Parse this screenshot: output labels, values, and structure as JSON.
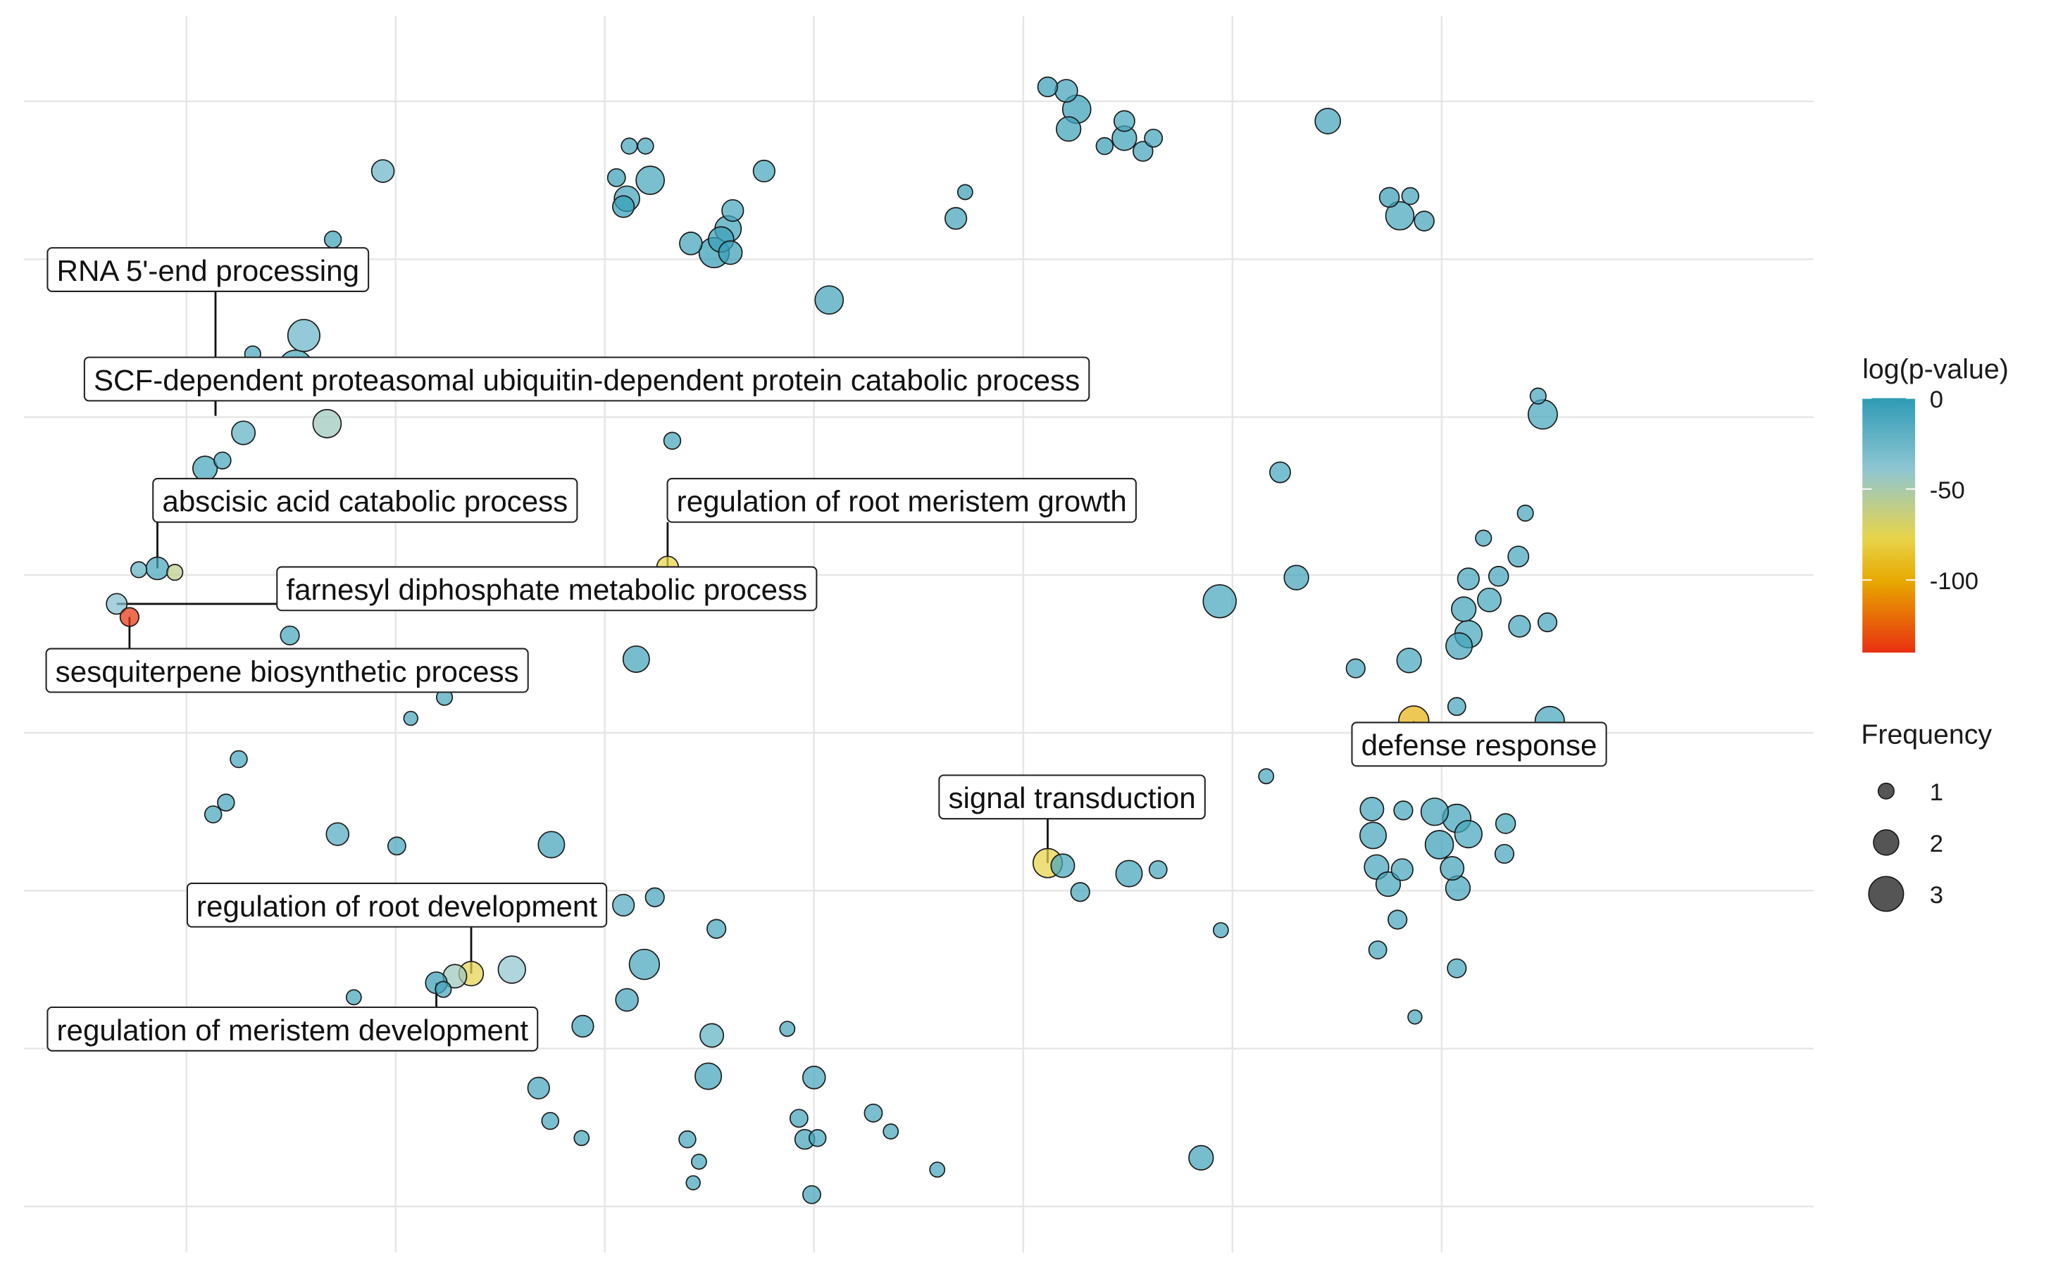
{
  "chart_data": {
    "type": "scatter",
    "title": "",
    "xlabel": "",
    "ylabel": "",
    "xlim": [
      0,
      1540
    ],
    "ylim": [
      0,
      940
    ],
    "grid": true,
    "axes_ticks_shown": false,
    "legend": {
      "placement": "right",
      "color": {
        "title": "log(p-value)",
        "ticks": [
          "0",
          "-50",
          "-100"
        ],
        "tick_values": [
          0,
          -50,
          -100
        ],
        "range": [
          -140,
          0
        ],
        "colors": [
          "#2E9BB5",
          "#8EC6D2",
          "#E8D44A",
          "#E8A800",
          "#E83010"
        ],
        "stops": [
          0,
          0.28,
          0.55,
          0.72,
          1
        ]
      },
      "size": {
        "title": "Frequency",
        "labels": [
          "1",
          "2",
          "3"
        ]
      }
    },
    "points": [
      {
        "x": 881,
        "y": 886,
        "freq": 1.4,
        "logp": -5
      },
      {
        "x": 897,
        "y": 883,
        "freq": 1.7,
        "logp": -8
      },
      {
        "x": 906,
        "y": 869,
        "freq": 2.3,
        "logp": -5
      },
      {
        "x": 899,
        "y": 854,
        "freq": 1.9,
        "logp": -6
      },
      {
        "x": 947,
        "y": 860,
        "freq": 1.5,
        "logp": -10
      },
      {
        "x": 947,
        "y": 847,
        "freq": 1.9,
        "logp": -6
      },
      {
        "x": 930,
        "y": 841,
        "freq": 1.1,
        "logp": -5
      },
      {
        "x": 972,
        "y": 847,
        "freq": 1.2,
        "logp": -8
      },
      {
        "x": 963,
        "y": 837,
        "freq": 1.4,
        "logp": -8
      },
      {
        "x": 1122,
        "y": 860,
        "freq": 2.0,
        "logp": -8
      },
      {
        "x": 521,
        "y": 841,
        "freq": 1.0,
        "logp": -10
      },
      {
        "x": 535,
        "y": 841,
        "freq": 1.0,
        "logp": -10
      },
      {
        "x": 309,
        "y": 822,
        "freq": 1.7,
        "logp": -25
      },
      {
        "x": 510,
        "y": 817,
        "freq": 1.2,
        "logp": -5
      },
      {
        "x": 539,
        "y": 815,
        "freq": 2.3,
        "logp": -10
      },
      {
        "x": 519,
        "y": 801,
        "freq": 2.0,
        "logp": -8
      },
      {
        "x": 516,
        "y": 795,
        "freq": 1.6,
        "logp": -3
      },
      {
        "x": 637,
        "y": 822,
        "freq": 1.6,
        "logp": -10
      },
      {
        "x": 810,
        "y": 806,
        "freq": 0.9,
        "logp": -5
      },
      {
        "x": 802,
        "y": 786,
        "freq": 1.6,
        "logp": -8
      },
      {
        "x": 266,
        "y": 770,
        "freq": 1.1,
        "logp": -6
      },
      {
        "x": 574,
        "y": 767,
        "freq": 1.7,
        "logp": -8
      },
      {
        "x": 610,
        "y": 792,
        "freq": 1.6,
        "logp": -10
      },
      {
        "x": 606,
        "y": 778,
        "freq": 2.1,
        "logp": -8
      },
      {
        "x": 600,
        "y": 770,
        "freq": 2.0,
        "logp": -5
      },
      {
        "x": 608,
        "y": 760,
        "freq": 1.8,
        "logp": -5
      },
      {
        "x": 594,
        "y": 760,
        "freq": 2.5,
        "logp": -3
      },
      {
        "x": 1175,
        "y": 802,
        "freq": 1.4,
        "logp": -5
      },
      {
        "x": 1193,
        "y": 803,
        "freq": 1.1,
        "logp": -8
      },
      {
        "x": 1184,
        "y": 788,
        "freq": 2.3,
        "logp": -10
      },
      {
        "x": 1205,
        "y": 784,
        "freq": 1.4,
        "logp": -8
      },
      {
        "x": 693,
        "y": 724,
        "freq": 2.3,
        "logp": -8
      },
      {
        "x": 241,
        "y": 697,
        "freq": 2.7,
        "logp": -25
      },
      {
        "x": 197,
        "y": 683,
        "freq": 1.0,
        "logp": -10
      },
      {
        "x": 234,
        "y": 673,
        "freq": 2.9,
        "logp": -10
      },
      {
        "x": 176,
        "y": 659,
        "freq": 1.1,
        "logp": -10
      },
      {
        "x": 633,
        "y": 666,
        "freq": 1.1,
        "logp": -10
      },
      {
        "x": 686,
        "y": 670,
        "freq": 0.8,
        "logp": -10
      },
      {
        "x": 261,
        "y": 630,
        "freq": 2.3,
        "logp": -45
      },
      {
        "x": 189,
        "y": 623,
        "freq": 1.8,
        "logp": -20
      },
      {
        "x": 558,
        "y": 617,
        "freq": 1.1,
        "logp": -10
      },
      {
        "x": 1303,
        "y": 651,
        "freq": 1.0,
        "logp": -10
      },
      {
        "x": 1307,
        "y": 637,
        "freq": 2.4,
        "logp": -10
      },
      {
        "x": 171,
        "y": 602,
        "freq": 1.1,
        "logp": -10
      },
      {
        "x": 156,
        "y": 596,
        "freq": 1.9,
        "logp": -10
      },
      {
        "x": 157,
        "y": 578,
        "freq": 1.1,
        "logp": -10
      },
      {
        "x": 1081,
        "y": 593,
        "freq": 1.5,
        "logp": -10
      },
      {
        "x": 1292,
        "y": 562,
        "freq": 1.0,
        "logp": -10
      },
      {
        "x": 1256,
        "y": 543,
        "freq": 1.0,
        "logp": -10
      },
      {
        "x": 1286,
        "y": 529,
        "freq": 1.5,
        "logp": -10
      },
      {
        "x": 1269,
        "y": 514,
        "freq": 1.4,
        "logp": -10
      },
      {
        "x": 1243,
        "y": 512,
        "freq": 1.6,
        "logp": -10
      },
      {
        "x": 1261,
        "y": 496,
        "freq": 1.8,
        "logp": -10
      },
      {
        "x": 1239,
        "y": 489,
        "freq": 1.9,
        "logp": -8
      },
      {
        "x": 1287,
        "y": 476,
        "freq": 1.6,
        "logp": -10
      },
      {
        "x": 1311,
        "y": 479,
        "freq": 1.3,
        "logp": -10
      },
      {
        "x": 1243,
        "y": 470,
        "freq": 2.2,
        "logp": -10
      },
      {
        "x": 1235,
        "y": 461,
        "freq": 2.1,
        "logp": -8
      },
      {
        "x": 1095,
        "y": 513,
        "freq": 1.9,
        "logp": -8
      },
      {
        "x": 1029,
        "y": 495,
        "freq": 2.8,
        "logp": -10
      },
      {
        "x": 99,
        "y": 519,
        "freq": 1.0,
        "logp": -20
      },
      {
        "x": 115,
        "y": 520,
        "freq": 1.7,
        "logp": -10
      },
      {
        "x": 130,
        "y": 517,
        "freq": 1.0,
        "logp": -58
      },
      {
        "x": 80,
        "y": 493,
        "freq": 1.5,
        "logp": -35
      },
      {
        "x": 91,
        "y": 483,
        "freq": 1.3,
        "logp": -138
      },
      {
        "x": 229,
        "y": 469,
        "freq": 1.3,
        "logp": -10
      },
      {
        "x": 554,
        "y": 521,
        "freq": 1.6,
        "logp": -78
      },
      {
        "x": 527,
        "y": 451,
        "freq": 2.1,
        "logp": -8
      },
      {
        "x": 1192,
        "y": 450,
        "freq": 1.9,
        "logp": -10
      },
      {
        "x": 1146,
        "y": 444,
        "freq": 1.3,
        "logp": -10
      },
      {
        "x": 1233,
        "y": 415,
        "freq": 1.2,
        "logp": -10
      },
      {
        "x": 1196,
        "y": 404,
        "freq": 2.5,
        "logp": -95
      },
      {
        "x": 1313,
        "y": 404,
        "freq": 2.4,
        "logp": -10
      },
      {
        "x": 1265,
        "y": 394,
        "freq": 1.4,
        "logp": -8
      },
      {
        "x": 362,
        "y": 422,
        "freq": 1.0,
        "logp": -10
      },
      {
        "x": 333,
        "y": 406,
        "freq": 0.8,
        "logp": -10
      },
      {
        "x": 185,
        "y": 375,
        "freq": 1.1,
        "logp": -10
      },
      {
        "x": 174,
        "y": 342,
        "freq": 1.1,
        "logp": -10
      },
      {
        "x": 163,
        "y": 333,
        "freq": 1.1,
        "logp": -10
      },
      {
        "x": 1069,
        "y": 362,
        "freq": 0.9,
        "logp": -10
      },
      {
        "x": 1160,
        "y": 337,
        "freq": 1.8,
        "logp": -10
      },
      {
        "x": 1187,
        "y": 336,
        "freq": 1.3,
        "logp": -10
      },
      {
        "x": 1214,
        "y": 335,
        "freq": 2.2,
        "logp": -8
      },
      {
        "x": 1233,
        "y": 330,
        "freq": 2.3,
        "logp": -8
      },
      {
        "x": 1243,
        "y": 318,
        "freq": 2.2,
        "logp": -10
      },
      {
        "x": 1275,
        "y": 326,
        "freq": 1.4,
        "logp": -10
      },
      {
        "x": 1161,
        "y": 317,
        "freq": 2.1,
        "logp": -10
      },
      {
        "x": 1218,
        "y": 310,
        "freq": 2.3,
        "logp": -5
      },
      {
        "x": 1274,
        "y": 303,
        "freq": 1.3,
        "logp": -10
      },
      {
        "x": 1164,
        "y": 293,
        "freq": 1.9,
        "logp": -10
      },
      {
        "x": 1186,
        "y": 291,
        "freq": 1.6,
        "logp": -10
      },
      {
        "x": 1229,
        "y": 292,
        "freq": 1.8,
        "logp": -8
      },
      {
        "x": 1174,
        "y": 280,
        "freq": 1.9,
        "logp": -10
      },
      {
        "x": 1234,
        "y": 277,
        "freq": 1.9,
        "logp": -10
      },
      {
        "x": 1182,
        "y": 253,
        "freq": 1.3,
        "logp": -10
      },
      {
        "x": 1165,
        "y": 230,
        "freq": 1.2,
        "logp": -10
      },
      {
        "x": 1233,
        "y": 216,
        "freq": 1.3,
        "logp": -10
      },
      {
        "x": 1197,
        "y": 179,
        "freq": 0.8,
        "logp": -10
      },
      {
        "x": 270,
        "y": 318,
        "freq": 1.7,
        "logp": -15
      },
      {
        "x": 321,
        "y": 309,
        "freq": 1.2,
        "logp": -10
      },
      {
        "x": 454,
        "y": 310,
        "freq": 2.1,
        "logp": -8
      },
      {
        "x": 881,
        "y": 296,
        "freq": 2.4,
        "logp": -78
      },
      {
        "x": 894,
        "y": 294,
        "freq": 1.8,
        "logp": -10
      },
      {
        "x": 951,
        "y": 288,
        "freq": 2.1,
        "logp": -8
      },
      {
        "x": 976,
        "y": 291,
        "freq": 1.2,
        "logp": -10
      },
      {
        "x": 909,
        "y": 274,
        "freq": 1.3,
        "logp": -10
      },
      {
        "x": 516,
        "y": 264,
        "freq": 1.6,
        "logp": -15
      },
      {
        "x": 543,
        "y": 270,
        "freq": 1.3,
        "logp": -10
      },
      {
        "x": 596,
        "y": 246,
        "freq": 1.3,
        "logp": -10
      },
      {
        "x": 1030,
        "y": 245,
        "freq": 0.9,
        "logp": -10
      },
      {
        "x": 420,
        "y": 215,
        "freq": 2.2,
        "logp": -40
      },
      {
        "x": 385,
        "y": 212,
        "freq": 1.9,
        "logp": -75
      },
      {
        "x": 371,
        "y": 210,
        "freq": 1.8,
        "logp": -45
      },
      {
        "x": 355,
        "y": 205,
        "freq": 1.6,
        "logp": -5
      },
      {
        "x": 534,
        "y": 219,
        "freq": 2.5,
        "logp": -10
      },
      {
        "x": 284,
        "y": 194,
        "freq": 0.9,
        "logp": -10
      },
      {
        "x": 519,
        "y": 192,
        "freq": 1.7,
        "logp": -8
      },
      {
        "x": 481,
        "y": 172,
        "freq": 1.6,
        "logp": -8
      },
      {
        "x": 592,
        "y": 165,
        "freq": 1.8,
        "logp": -20
      },
      {
        "x": 657,
        "y": 170,
        "freq": 0.9,
        "logp": -10
      },
      {
        "x": 589,
        "y": 134,
        "freq": 2.1,
        "logp": -8
      },
      {
        "x": 680,
        "y": 133,
        "freq": 1.7,
        "logp": -10
      },
      {
        "x": 443,
        "y": 125,
        "freq": 1.6,
        "logp": -10
      },
      {
        "x": 453,
        "y": 100,
        "freq": 1.1,
        "logp": -10
      },
      {
        "x": 480,
        "y": 87,
        "freq": 0.9,
        "logp": -10
      },
      {
        "x": 571,
        "y": 86,
        "freq": 1.1,
        "logp": -10
      },
      {
        "x": 581,
        "y": 69,
        "freq": 0.9,
        "logp": -10
      },
      {
        "x": 576,
        "y": 53,
        "freq": 0.8,
        "logp": -10
      },
      {
        "x": 667,
        "y": 102,
        "freq": 1.2,
        "logp": -8
      },
      {
        "x": 672,
        "y": 86,
        "freq": 1.4,
        "logp": -8
      },
      {
        "x": 683,
        "y": 87,
        "freq": 1.1,
        "logp": -10
      },
      {
        "x": 731,
        "y": 106,
        "freq": 1.2,
        "logp": -10
      },
      {
        "x": 746,
        "y": 92,
        "freq": 0.9,
        "logp": -10
      },
      {
        "x": 786,
        "y": 63,
        "freq": 0.9,
        "logp": -10
      },
      {
        "x": 678,
        "y": 44,
        "freq": 1.2,
        "logp": -8
      },
      {
        "x": 1013,
        "y": 72,
        "freq": 1.9,
        "logp": -8
      },
      {
        "x": 361,
        "y": 200,
        "freq": 1.0,
        "logp": -10
      }
    ],
    "annotations": [
      {
        "text": "RNA 5'-end processing"
      },
      {
        "text": "SCF-dependent proteasomal ubiquitin-dependent protein catabolic process"
      },
      {
        "text": "abscisic acid catabolic process"
      },
      {
        "text": "regulation of root meristem growth"
      },
      {
        "text": "farnesyl diphosphate metabolic process"
      },
      {
        "text": "sesquiterpene biosynthetic process"
      },
      {
        "text": "defense response"
      },
      {
        "text": "signal transduction"
      },
      {
        "text": "regulation of root development"
      },
      {
        "text": "regulation of meristem development"
      }
    ]
  }
}
